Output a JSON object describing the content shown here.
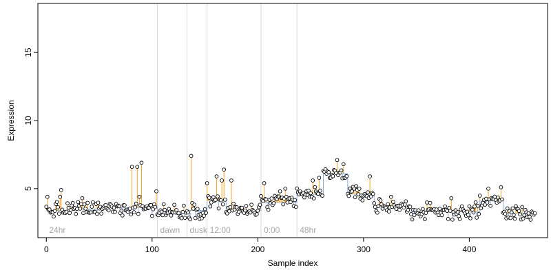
{
  "chart_data": {
    "type": "scatter",
    "title": "",
    "xlabel": "Sample index",
    "ylabel": "Expression",
    "xlim": [
      -8,
      474
    ],
    "ylim": [
      1.4,
      18.6
    ],
    "x_ticks": [
      0,
      100,
      200,
      300,
      400
    ],
    "y_ticks": [
      5,
      10,
      15
    ],
    "grid": false,
    "legend": "none",
    "section_boundaries": [
      105,
      133,
      152,
      203,
      237
    ],
    "section_labels": [
      {
        "label": "24hr",
        "x": 2
      },
      {
        "label": "dawn",
        "x": 107
      },
      {
        "label": "dusk",
        "x": 135
      },
      {
        "label": "12:00",
        "x": 154
      },
      {
        "label": "0:00",
        "x": 205
      },
      {
        "label": "48hr",
        "x": 239
      }
    ],
    "colors": {
      "point_fill": "#ffffff",
      "point_stroke": "#000000",
      "above_baseline": "#f5a623",
      "below_baseline": "#8fb3e0",
      "boundary_line": "#d9d9d9",
      "section_label": "#a6a6a6",
      "axis": "#000000"
    },
    "baseline_segments": [
      {
        "x_start": 0,
        "x_end": 20,
        "y": 3.4
      },
      {
        "x_start": 20,
        "x_end": 60,
        "y": 3.5
      },
      {
        "x_start": 60,
        "x_end": 105,
        "y": 3.6
      },
      {
        "x_start": 105,
        "x_end": 133,
        "y": 3.3
      },
      {
        "x_start": 133,
        "x_end": 152,
        "y": 3.4
      },
      {
        "x_start": 152,
        "x_end": 170,
        "y": 4.1
      },
      {
        "x_start": 170,
        "x_end": 203,
        "y": 3.4
      },
      {
        "x_start": 203,
        "x_end": 237,
        "y": 4.0
      },
      {
        "x_start": 237,
        "x_end": 262,
        "y": 4.6
      },
      {
        "x_start": 262,
        "x_end": 285,
        "y": 6.1
      },
      {
        "x_start": 285,
        "x_end": 310,
        "y": 4.6
      },
      {
        "x_start": 310,
        "x_end": 345,
        "y": 3.7
      },
      {
        "x_start": 345,
        "x_end": 410,
        "y": 3.3
      },
      {
        "x_start": 410,
        "x_end": 432,
        "y": 4.1
      },
      {
        "x_start": 432,
        "x_end": 462,
        "y": 3.2
      }
    ],
    "outliers": [
      {
        "x": 1,
        "y": 4.4
      },
      {
        "x": 13,
        "y": 4.4
      },
      {
        "x": 14,
        "y": 4.9
      },
      {
        "x": 34,
        "y": 4.3
      },
      {
        "x": 81,
        "y": 6.6
      },
      {
        "x": 86,
        "y": 6.6
      },
      {
        "x": 88,
        "y": 4.4
      },
      {
        "x": 90,
        "y": 6.9
      },
      {
        "x": 104,
        "y": 4.8
      },
      {
        "x": 137,
        "y": 7.4
      },
      {
        "x": 152,
        "y": 5.4
      },
      {
        "x": 161,
        "y": 5.9
      },
      {
        "x": 166,
        "y": 5.6
      },
      {
        "x": 168,
        "y": 6.4
      },
      {
        "x": 175,
        "y": 5.6
      },
      {
        "x": 206,
        "y": 5.4
      },
      {
        "x": 221,
        "y": 4.8
      },
      {
        "x": 226,
        "y": 5.0
      },
      {
        "x": 242,
        "y": 4.6
      },
      {
        "x": 252,
        "y": 5.6
      },
      {
        "x": 258,
        "y": 5.8
      },
      {
        "x": 275,
        "y": 7.1
      },
      {
        "x": 281,
        "y": 6.8
      },
      {
        "x": 306,
        "y": 5.9
      },
      {
        "x": 326,
        "y": 4.4
      },
      {
        "x": 383,
        "y": 4.3
      },
      {
        "x": 418,
        "y": 5.0
      },
      {
        "x": 430,
        "y": 5.1
      }
    ]
  }
}
